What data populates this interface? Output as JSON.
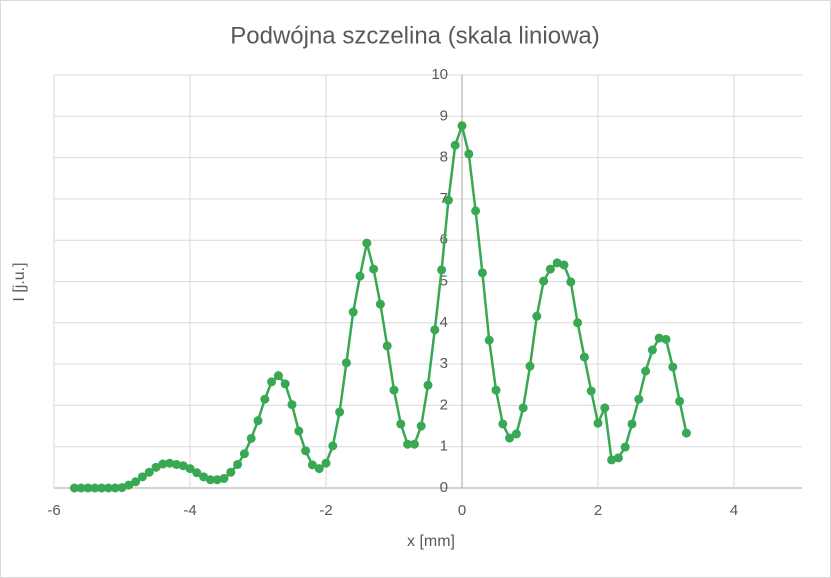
{
  "chart_data": {
    "type": "line",
    "title": "Podwójna szczelina (skala liniowa)",
    "x_label": "x [mm]",
    "y_label": "I [j.u.]",
    "x": [
      -5.7,
      -5.6,
      -5.5,
      -5.4,
      -5.3,
      -5.2,
      -5.1,
      -5.0,
      -4.9,
      -4.8,
      -4.7,
      -4.6,
      -4.5,
      -4.4,
      -4.3,
      -4.2,
      -4.1,
      -4.0,
      -3.9,
      -3.8,
      -3.7,
      -3.6,
      -3.5,
      -3.4,
      -3.3,
      -3.2,
      -3.1,
      -3.0,
      -2.9,
      -2.8,
      -2.7,
      -2.6,
      -2.5,
      -2.4,
      -2.3,
      -2.2,
      -2.1,
      -2.0,
      -1.9,
      -1.8,
      -1.7,
      -1.6,
      -1.5,
      -1.4,
      -1.3,
      -1.2,
      -1.1,
      -1.0,
      -0.9,
      -0.8,
      -0.7,
      -0.6,
      -0.5,
      -0.4,
      -0.3,
      -0.2,
      -0.1,
      0,
      0.1,
      0.2,
      0.3,
      0.4,
      0.5,
      0.6,
      0.7,
      0.8,
      0.9,
      1.0,
      1.1,
      1.2,
      1.3,
      1.4,
      1.5,
      1.6,
      1.7,
      1.8,
      1.9,
      2.0,
      2.1,
      2.2,
      2.3,
      2.4,
      2.5,
      2.6,
      2.7,
      2.8,
      2.9,
      3.0,
      3.1,
      3.2,
      3.3
    ],
    "series": [
      {
        "color": "#38a852",
        "values": [
          0,
          0,
          0,
          0,
          0,
          0,
          0,
          0.01,
          0.07,
          0.15,
          0.27,
          0.38,
          0.5,
          0.58,
          0.6,
          0.57,
          0.54,
          0.47,
          0.37,
          0.27,
          0.2,
          0.2,
          0.23,
          0.38,
          0.57,
          0.83,
          1.2,
          1.63,
          2.15,
          2.57,
          2.72,
          2.52,
          2.02,
          1.38,
          0.9,
          0.56,
          0.47,
          0.6,
          1.02,
          1.84,
          3.03,
          4.26,
          5.13,
          5.93,
          5.3,
          4.45,
          3.44,
          2.37,
          1.55,
          1.06,
          1.06,
          1.5,
          2.49,
          3.83,
          5.28,
          6.97,
          8.3,
          8.77,
          8.09,
          6.71,
          5.21,
          3.58,
          2.37,
          1.55,
          1.21,
          1.31,
          1.94,
          2.95,
          4.16,
          5.01,
          5.3,
          5.45,
          5.4,
          4.99,
          4.0,
          3.17,
          2.35,
          1.57,
          1.94,
          0.68,
          0.73,
          0.99,
          1.55,
          2.15,
          2.83,
          3.34,
          3.63,
          3.6,
          2.93,
          2.1,
          1.33
        ]
      }
    ],
    "xlim": [
      -6,
      5
    ],
    "xticks": [
      -6,
      -4,
      -2,
      0,
      2,
      4
    ],
    "ylim": [
      0,
      10
    ],
    "yticks": [
      0,
      1,
      2,
      3,
      4,
      5,
      6,
      7,
      8,
      9,
      10
    ],
    "grid": true
  }
}
